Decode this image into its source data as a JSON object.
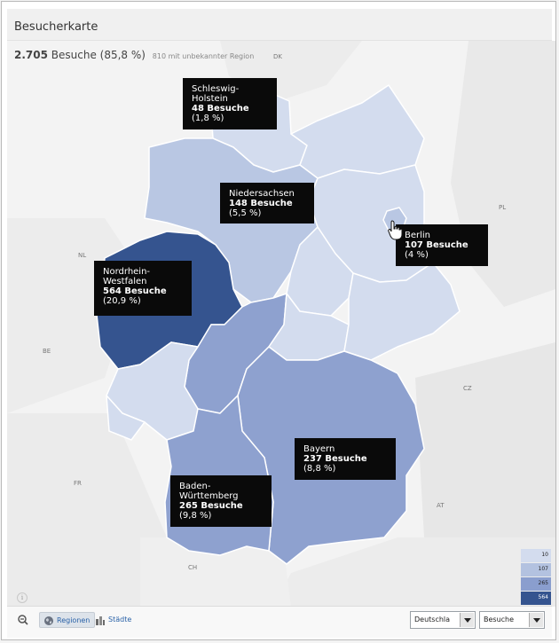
{
  "header": {
    "title": "Besucherkarte"
  },
  "summary": {
    "total_visits": "2.705",
    "visits_label": "Besuche (85,8 %)",
    "unknown_region": "810 mit unbekannter Region"
  },
  "regions": [
    {
      "name": "Schleswig-Holstein",
      "name_lines": [
        "Schleswig-",
        "Holstein"
      ],
      "visits": "48 Besuche",
      "share": "(1,8 %)"
    },
    {
      "name": "Niedersachsen",
      "name_lines": [
        "Niedersachsen"
      ],
      "visits": "148 Besuche",
      "share": "(5,5 %)"
    },
    {
      "name": "Berlin",
      "name_lines": [
        "Berlin"
      ],
      "visits": "107 Besuche",
      "share": "(4 %)"
    },
    {
      "name": "Nordrhein-Westfalen",
      "name_lines": [
        "Nordrhein-",
        "Westfalen"
      ],
      "visits": "564 Besuche",
      "share": "(20,9 %)"
    },
    {
      "name": "Bayern",
      "name_lines": [
        "Bayern"
      ],
      "visits": "237 Besuche",
      "share": "(8,8 %)"
    },
    {
      "name": "Baden-Württemberg",
      "name_lines": [
        "Baden-",
        "Württemberg"
      ],
      "visits": "265 Besuche",
      "share": "(9,8 %)"
    }
  ],
  "country_labels": [
    "DK",
    "PL",
    "NL",
    "BE",
    "CZ",
    "FR",
    "AT",
    "CH"
  ],
  "legend": {
    "levels": [
      {
        "value": "10",
        "color": "#d3dcee"
      },
      {
        "value": "107",
        "color": "#b3c2e0"
      },
      {
        "value": "265",
        "color": "#8a9ece"
      },
      {
        "value": "564",
        "color": "#35548f"
      }
    ]
  },
  "fill_colors": {
    "background": "#f2f2f2",
    "neighbor": "#e8e8e8",
    "border": "#ffffff",
    "lightest": "#d3dcee",
    "light": "#b9c7e3",
    "medium": "#8ea1cf",
    "dark": "#35548f"
  },
  "bottom_bar": {
    "zoom_icon": "zoom-out-icon",
    "tab_regions": "Regionen",
    "tab_cities": "Städte",
    "country_select": "Deutschla",
    "metric_select": "Besuche"
  },
  "cursor": "hand-cursor-icon"
}
